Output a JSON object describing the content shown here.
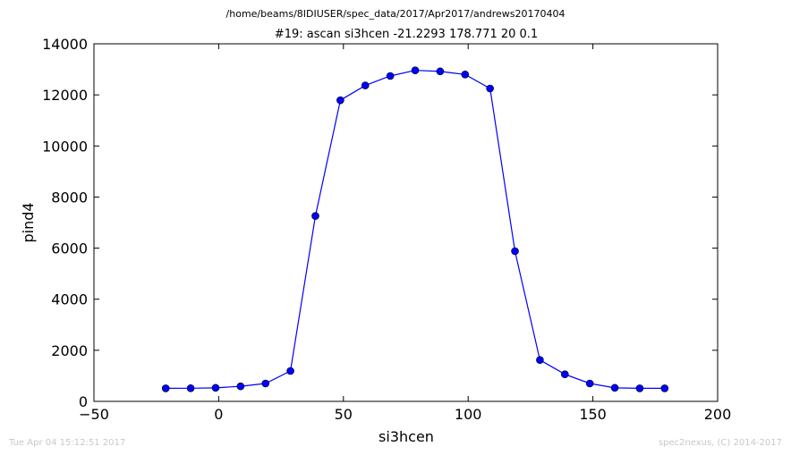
{
  "figure": {
    "suptitle": "/home/beams/8IDIUSER/spec_data/2017/Apr2017/andrews20170404",
    "footer_left": "Tue Apr 04 15:12:51 2017",
    "footer_right": "spec2nexus, (C) 2014-2017"
  },
  "chart_data": {
    "type": "line",
    "title": "#19: ascan  si3hcen -21.2293 178.771  20 0.1",
    "xlabel": "si3hcen",
    "ylabel": "pind4",
    "xlim": [
      -50,
      200
    ],
    "ylim": [
      0,
      14000
    ],
    "xticks": [
      -50,
      0,
      50,
      100,
      150,
      200
    ],
    "xtick_labels": [
      "−50",
      "0",
      "50",
      "100",
      "150",
      "200"
    ],
    "yticks": [
      0,
      2000,
      4000,
      6000,
      8000,
      10000,
      12000,
      14000
    ],
    "ytick_labels": [
      "0",
      "2000",
      "4000",
      "6000",
      "8000",
      "10000",
      "12000",
      "14000"
    ],
    "grid": false,
    "series": [
      {
        "color": "#0000ff",
        "marker": "circle",
        "x": [
          -21.2293,
          -11.2293,
          -1.2293,
          8.7707,
          18.7707,
          28.7707,
          38.7707,
          48.7707,
          58.7707,
          68.7707,
          78.7707,
          88.7707,
          98.7707,
          108.7707,
          118.7707,
          128.7707,
          138.7707,
          148.7707,
          158.7707,
          168.7707,
          178.771
        ],
        "y": [
          510,
          515,
          530,
          590,
          700,
          1190,
          7260,
          11790,
          12370,
          12740,
          12960,
          12920,
          12800,
          12250,
          5880,
          1620,
          1060,
          700,
          530,
          510,
          510
        ]
      }
    ]
  }
}
